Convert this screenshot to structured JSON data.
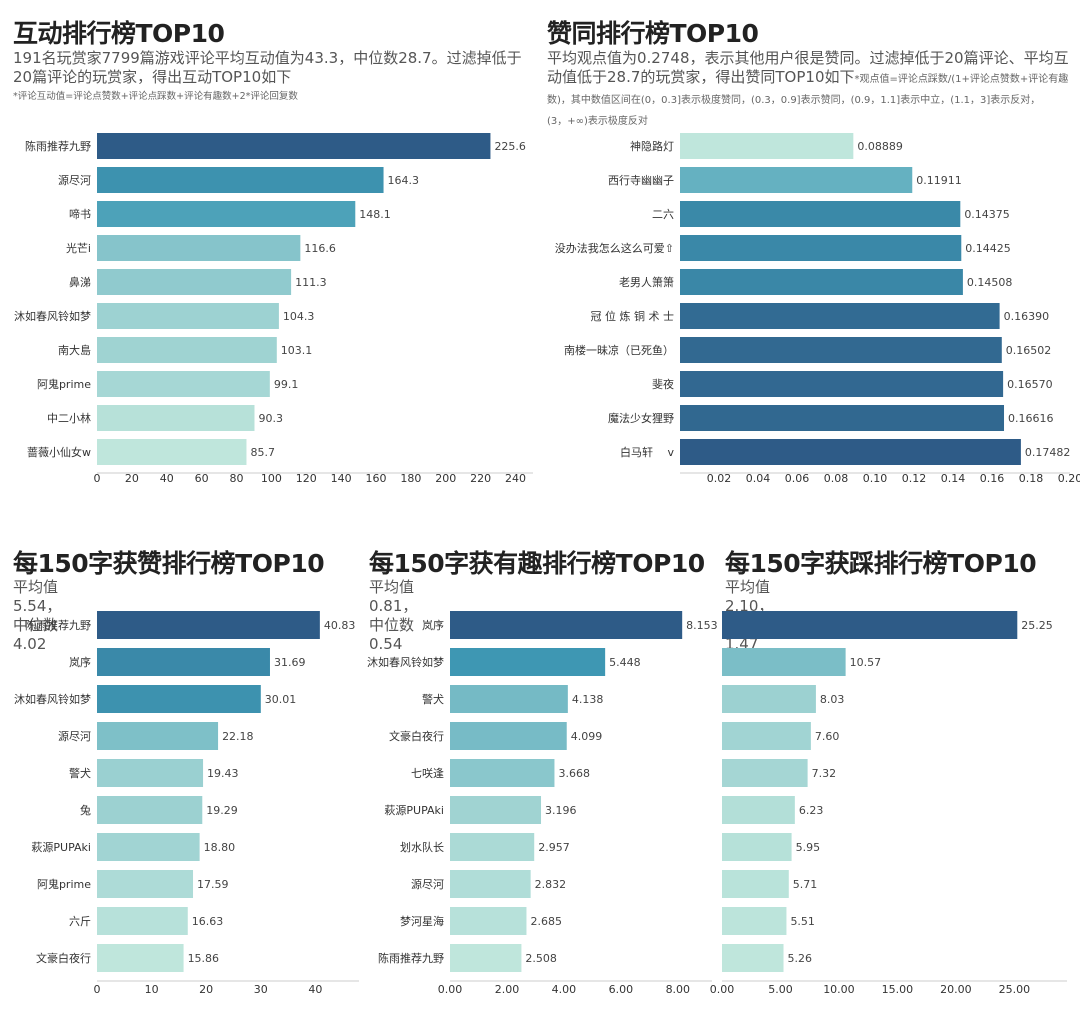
{
  "charts": {
    "interaction": {
      "title": "互动排行榜TOP10",
      "subtitle": "191名玩赏家7799篇游戏评论平均互动值为43.3，中位数28.7。过滤掉低于20篇评论的玩赏家，得出互动TOP10如下",
      "note": "*评论互动值=评论点赞数+评论点踩数+评论有趣数+2*评论回复数"
    },
    "approval": {
      "title": "赞同排行榜TOP10",
      "subtitle": "平均观点值为0.2748，表示其他用户很是赞同。过滤掉低于20篇评论、平均互动值低于28.7的玩赏家，得出赞同TOP10如下",
      "note": "*观点值=评论点踩数/(1+评论点赞数+评论有趣数)，其中数值区间在(0，0.3]表示极度赞同，(0.3，0.9]表示赞同，(0.9，1.1]表示中立，(1.1，3]表示反对，(3，+∞)表示极度反对"
    },
    "likes150": {
      "title": "每150字获赞排行榜TOP10",
      "subtitle": "平均值5.54，中位数4.02"
    },
    "funny150": {
      "title": "每150字获有趣排行榜TOP10",
      "subtitle": "平均值0.81，中位数0.54"
    },
    "dislike150": {
      "title": "每150字获踩排行榜TOP10",
      "subtitle": "平均值2.10，中位数1.47"
    }
  },
  "colors": {
    "dark": "#2e5b87",
    "mid": "#3f9ab5",
    "light": "#bfe6dc",
    "axis": "#cccccc"
  },
  "chart_data": [
    {
      "id": "interaction",
      "type": "bar",
      "orientation": "horizontal",
      "title": "互动排行榜TOP10",
      "categories": [
        "陈雨推荐九野",
        "源尽河",
        "啼书",
        "光芒i",
        "鼻涕",
        "沐如春风铃如梦",
        "南大島",
        "阿鬼prime",
        "中二小林",
        "蔷薇小仙女w"
      ],
      "values": [
        225.6,
        164.3,
        148.1,
        116.6,
        111.3,
        104.3,
        103.1,
        99.1,
        90.3,
        85.7
      ],
      "value_labels": [
        "225.6",
        "164.3",
        "148.1",
        "116.6",
        "111.3",
        "104.3",
        "103.1",
        "99.1",
        "90.3",
        "85.7"
      ],
      "xlim": [
        0,
        250
      ],
      "ticks": [
        0,
        20,
        40,
        60,
        80,
        100,
        120,
        140,
        160,
        180,
        200,
        220,
        240
      ],
      "tick_labels": [
        "0",
        "20",
        "40",
        "60",
        "80",
        "100",
        "120",
        "140",
        "160",
        "180",
        "200",
        "220",
        "240"
      ],
      "grid": false
    },
    {
      "id": "approval",
      "type": "bar",
      "orientation": "horizontal",
      "title": "赞同排行榜TOP10",
      "categories": [
        "神隐路灯",
        "西行寺幽幽子",
        "二六",
        "没办法我怎么这么可爱⇧",
        "老男人箫箫",
        "冠 位 炼 铜 术 士",
        "南楼一昧凉（已死鱼）",
        "斐夜",
        "魔法少女狸野",
        "白马轩　 v"
      ],
      "values": [
        0.08889,
        0.11911,
        0.14375,
        0.14425,
        0.14508,
        0.1639,
        0.16502,
        0.1657,
        0.16616,
        0.17482
      ],
      "value_labels": [
        "0.08889",
        "0.11911",
        "0.14375",
        "0.14425",
        "0.14508",
        "0.16390",
        "0.16502",
        "0.16570",
        "0.16616",
        "0.17482"
      ],
      "xlim": [
        0,
        0.2
      ],
      "ticks": [
        0.02,
        0.04,
        0.06,
        0.08,
        0.1,
        0.12,
        0.14,
        0.16,
        0.18,
        0.2
      ],
      "tick_labels": [
        "0.02",
        "0.04",
        "0.06",
        "0.08",
        "0.10",
        "0.12",
        "0.14",
        "0.16",
        "0.18",
        "0.20"
      ],
      "grid": false
    },
    {
      "id": "likes150",
      "type": "bar",
      "orientation": "horizontal",
      "title": "每150字获赞排行榜TOP10",
      "categories": [
        "陈雨推荐九野",
        "岚序",
        "沐如春风铃如梦",
        "源尽河",
        "警犬",
        "兔",
        "萩源PUPAki",
        "阿鬼prime",
        "六斤",
        "文豪白夜行"
      ],
      "values": [
        40.83,
        31.69,
        30.01,
        22.18,
        19.43,
        19.29,
        18.8,
        17.59,
        16.63,
        15.86
      ],
      "value_labels": [
        "40.83",
        "31.69",
        "30.01",
        "22.18",
        "19.43",
        "19.29",
        "18.80",
        "17.59",
        "16.63",
        "15.86"
      ],
      "xlim": [
        0,
        48
      ],
      "ticks": [
        0,
        10,
        20,
        30,
        40
      ],
      "tick_labels": [
        "0",
        "10",
        "20",
        "30",
        "40"
      ],
      "grid": false
    },
    {
      "id": "funny150",
      "type": "bar",
      "orientation": "horizontal",
      "title": "每150字获有趣排行榜TOP10",
      "categories": [
        "岚序",
        "沐如春风铃如梦",
        "警犬",
        "文豪白夜行",
        "七咲逢",
        "萩源PUPAki",
        "划水队长",
        "源尽河",
        "梦河星海",
        "陈雨推荐九野"
      ],
      "values": [
        8.153,
        5.448,
        4.138,
        4.099,
        3.668,
        3.196,
        2.957,
        2.832,
        2.685,
        2.508
      ],
      "value_labels": [
        "8.153",
        "5.448",
        "4.138",
        "4.099",
        "3.668",
        "3.196",
        "2.957",
        "2.832",
        "2.685",
        "2.508"
      ],
      "xlim": [
        0,
        9.2
      ],
      "ticks": [
        0,
        2,
        4,
        6,
        8
      ],
      "tick_labels": [
        "0.00",
        "2.00",
        "4.00",
        "6.00",
        "8.00"
      ],
      "grid": false
    },
    {
      "id": "dislike150",
      "type": "bar",
      "orientation": "horizontal",
      "title": "每150字获踩排行榜TOP10",
      "categories": [
        "",
        "",
        "",
        "",
        "",
        "",
        "",
        "",
        "",
        ""
      ],
      "values": [
        25.25,
        10.57,
        8.03,
        7.6,
        7.32,
        6.23,
        5.95,
        5.71,
        5.51,
        5.26
      ],
      "value_labels": [
        "25.25",
        "10.57",
        "8.03",
        "7.60",
        "7.32",
        "6.23",
        "5.95",
        "5.71",
        "5.51",
        "5.26"
      ],
      "xlim": [
        0,
        29.5
      ],
      "ticks": [
        0,
        5,
        10,
        15,
        20,
        25
      ],
      "tick_labels": [
        "0.00",
        "5.00",
        "10.00",
        "15.00",
        "20.00",
        "25.00"
      ],
      "grid": false
    }
  ]
}
